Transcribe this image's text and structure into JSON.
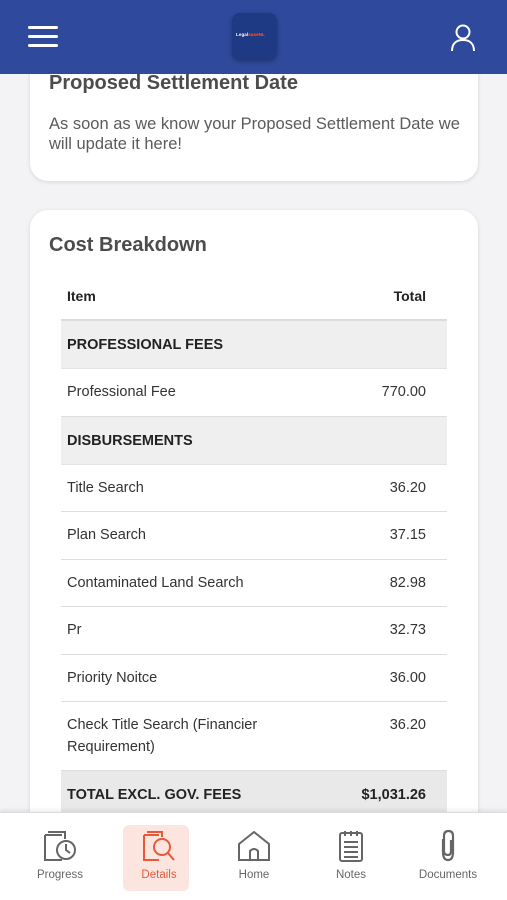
{
  "header": {
    "logo_text": "Legal",
    "logo_accent": "easeNL",
    "menu_icon": "hamburger-icon",
    "user_icon": "user-icon"
  },
  "settlement": {
    "title": "Proposed Settlement Date",
    "message": "As soon as we know your Proposed Settlement Date we will update it here!"
  },
  "cost_breakdown": {
    "title": "Cost Breakdown",
    "col_item": "Item",
    "col_total": "Total",
    "sections": [
      {
        "heading": "PROFESSIONAL FEES",
        "items": [
          {
            "label": "Professional Fee",
            "amount": "770.00"
          }
        ]
      },
      {
        "heading": "DISBURSEMENTS",
        "items": [
          {
            "label": "Title Search",
            "amount": "36.20"
          },
          {
            "label": "Plan Search",
            "amount": "37.15"
          },
          {
            "label": "Contaminated Land Search",
            "amount": "82.98"
          },
          {
            "label": "Pr",
            "amount": "32.73"
          },
          {
            "label": "Priority Noitce",
            "amount": "36.00"
          },
          {
            "label": "Check Title Search (Financier Requirement)",
            "amount": "36.20"
          }
        ]
      }
    ],
    "total_label": "TOTAL EXCL. GOV. FEES",
    "total_amount": "$1,031.26"
  },
  "nav": [
    {
      "label": "Progress",
      "icon": "progress-icon",
      "active": false
    },
    {
      "label": "Details",
      "icon": "details-icon",
      "active": true
    },
    {
      "label": "Home",
      "icon": "home-icon",
      "active": false
    },
    {
      "label": "Notes",
      "icon": "notes-icon",
      "active": false
    },
    {
      "label": "Documents",
      "icon": "documents-icon",
      "active": false
    }
  ],
  "colors": {
    "header": "#2f4a9c",
    "accent": "#e8583a",
    "active_bg": "#fde5df"
  }
}
